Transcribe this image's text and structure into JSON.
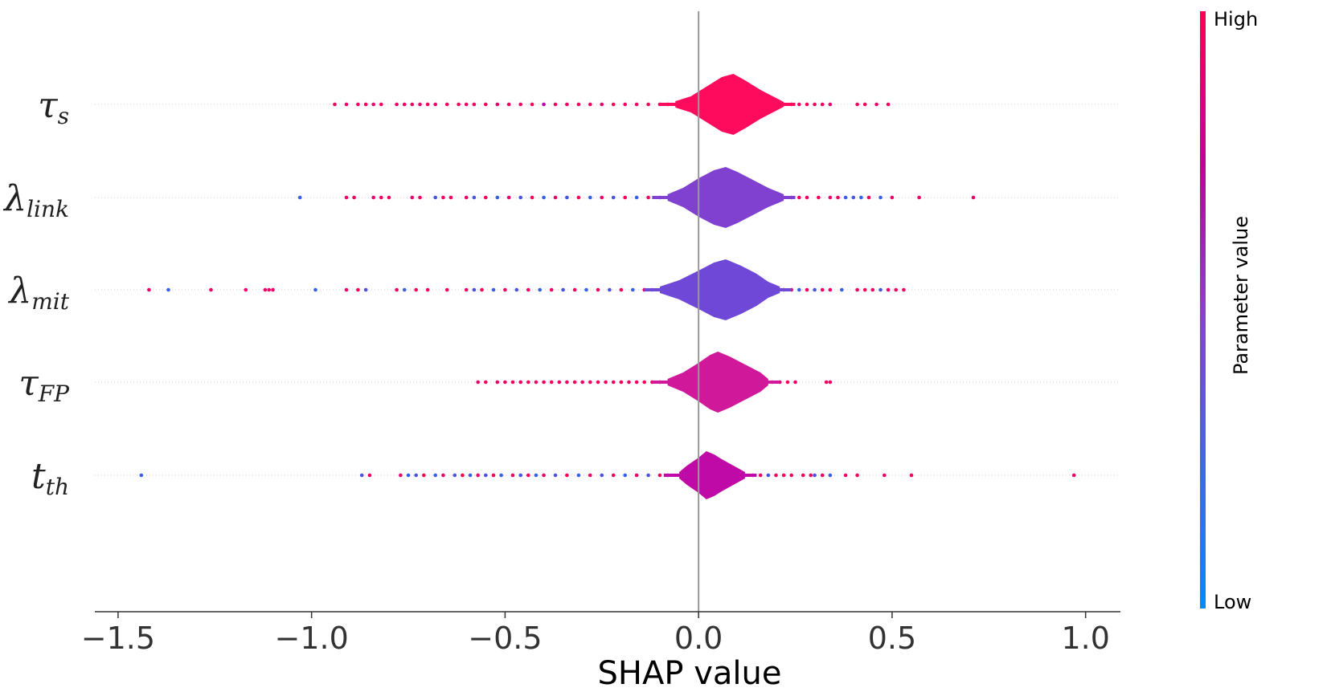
{
  "chart_data": {
    "type": "violin-beeswarm",
    "xlabel": "SHAP value",
    "xlim": [
      -1.56,
      1.09
    ],
    "xticks": [
      -1.5,
      -1.0,
      -0.5,
      0.0,
      0.5,
      1.0
    ],
    "xtick_labels": [
      "−1.5",
      "−1.0",
      "−0.5",
      "0.0",
      "0.5",
      "1.0"
    ],
    "colorbar": {
      "label": "Parameter value",
      "high": "High",
      "low": "Low",
      "color_high": "#ff0052",
      "color_mid": "#b400b4",
      "color_low": "#008bfb"
    },
    "features": [
      {
        "symbol": "τ",
        "sub": "s",
        "color": "#ff0b5e",
        "density": [
          [
            -0.06,
            4
          ],
          [
            -0.02,
            10
          ],
          [
            0.02,
            22
          ],
          [
            0.06,
            34
          ],
          [
            0.09,
            38
          ],
          [
            0.12,
            30
          ],
          [
            0.16,
            18
          ],
          [
            0.2,
            8
          ],
          [
            0.22,
            3
          ]
        ],
        "points": [
          {
            "x": -0.94,
            "v": 0.95
          },
          {
            "x": -0.91,
            "v": 0.9
          },
          {
            "x": -0.88,
            "v": 0.92
          },
          {
            "x": -0.86,
            "v": 0.95
          },
          {
            "x": -0.84,
            "v": 0.88
          },
          {
            "x": -0.82,
            "v": 0.95
          },
          {
            "x": -0.78,
            "v": 0.9
          },
          {
            "x": -0.76,
            "v": 0.95
          },
          {
            "x": -0.74,
            "v": 0.93
          },
          {
            "x": -0.72,
            "v": 0.9
          },
          {
            "x": -0.7,
            "v": 0.95
          },
          {
            "x": -0.68,
            "v": 0.88
          },
          {
            "x": -0.65,
            "v": 0.93
          },
          {
            "x": -0.62,
            "v": 0.95
          },
          {
            "x": -0.6,
            "v": 0.9
          },
          {
            "x": -0.58,
            "v": 0.92
          },
          {
            "x": -0.55,
            "v": 0.95
          },
          {
            "x": -0.52,
            "v": 0.88
          },
          {
            "x": -0.49,
            "v": 0.93
          },
          {
            "x": -0.46,
            "v": 0.9
          },
          {
            "x": -0.43,
            "v": 0.95
          },
          {
            "x": -0.4,
            "v": 0.55
          },
          {
            "x": -0.37,
            "v": 0.93
          },
          {
            "x": -0.34,
            "v": 0.9
          },
          {
            "x": -0.31,
            "v": 0.95
          },
          {
            "x": -0.28,
            "v": 0.92
          },
          {
            "x": -0.25,
            "v": 0.88
          },
          {
            "x": -0.22,
            "v": 0.95
          },
          {
            "x": -0.19,
            "v": 0.9
          },
          {
            "x": -0.16,
            "v": 0.93
          },
          {
            "x": -0.13,
            "v": 0.95
          },
          {
            "x": -0.1,
            "v": 0.9
          },
          {
            "x": -0.08,
            "v": 0.92
          },
          {
            "x": 0.24,
            "v": 0.93
          },
          {
            "x": 0.26,
            "v": 0.9
          },
          {
            "x": 0.28,
            "v": 0.95
          },
          {
            "x": 0.3,
            "v": 0.92
          },
          {
            "x": 0.32,
            "v": 0.95
          },
          {
            "x": 0.34,
            "v": 0.9
          },
          {
            "x": 0.41,
            "v": 0.93
          },
          {
            "x": 0.43,
            "v": 0.95
          },
          {
            "x": 0.46,
            "v": 0.9
          },
          {
            "x": 0.49,
            "v": 0.95
          }
        ]
      },
      {
        "symbol": "λ",
        "sub": "link",
        "color": "#8040d0",
        "density": [
          [
            -0.08,
            4
          ],
          [
            -0.04,
            12
          ],
          [
            0.0,
            24
          ],
          [
            0.04,
            34
          ],
          [
            0.07,
            38
          ],
          [
            0.1,
            32
          ],
          [
            0.14,
            22
          ],
          [
            0.18,
            12
          ],
          [
            0.22,
            4
          ]
        ],
        "points": [
          {
            "x": -1.03,
            "v": 0.15
          },
          {
            "x": -0.91,
            "v": 0.9
          },
          {
            "x": -0.89,
            "v": 0.95
          },
          {
            "x": -0.84,
            "v": 0.9
          },
          {
            "x": -0.82,
            "v": 0.95
          },
          {
            "x": -0.8,
            "v": 0.92
          },
          {
            "x": -0.74,
            "v": 0.9
          },
          {
            "x": -0.72,
            "v": 0.95
          },
          {
            "x": -0.68,
            "v": 0.2
          },
          {
            "x": -0.66,
            "v": 0.9
          },
          {
            "x": -0.64,
            "v": 0.95
          },
          {
            "x": -0.6,
            "v": 0.9
          },
          {
            "x": -0.58,
            "v": 0.2
          },
          {
            "x": -0.55,
            "v": 0.95
          },
          {
            "x": -0.52,
            "v": 0.15
          },
          {
            "x": -0.49,
            "v": 0.9
          },
          {
            "x": -0.46,
            "v": 0.2
          },
          {
            "x": -0.43,
            "v": 0.95
          },
          {
            "x": -0.4,
            "v": 0.15
          },
          {
            "x": -0.37,
            "v": 0.9
          },
          {
            "x": -0.34,
            "v": 0.2
          },
          {
            "x": -0.31,
            "v": 0.95
          },
          {
            "x": -0.28,
            "v": 0.15
          },
          {
            "x": -0.25,
            "v": 0.9
          },
          {
            "x": -0.22,
            "v": 0.2
          },
          {
            "x": -0.19,
            "v": 0.95
          },
          {
            "x": -0.16,
            "v": 0.15
          },
          {
            "x": -0.13,
            "v": 0.9
          },
          {
            "x": -0.1,
            "v": 0.2
          },
          {
            "x": 0.24,
            "v": 0.9
          },
          {
            "x": 0.26,
            "v": 0.95
          },
          {
            "x": 0.28,
            "v": 0.9
          },
          {
            "x": 0.31,
            "v": 0.95
          },
          {
            "x": 0.34,
            "v": 0.9
          },
          {
            "x": 0.36,
            "v": 0.95
          },
          {
            "x": 0.38,
            "v": 0.15
          },
          {
            "x": 0.4,
            "v": 0.2
          },
          {
            "x": 0.42,
            "v": 0.15
          },
          {
            "x": 0.44,
            "v": 0.95
          },
          {
            "x": 0.47,
            "v": 0.15
          },
          {
            "x": 0.5,
            "v": 0.9
          },
          {
            "x": 0.57,
            "v": 0.9
          },
          {
            "x": 0.71,
            "v": 0.9
          }
        ]
      },
      {
        "symbol": "λ",
        "sub": "mit",
        "color": "#7048d8",
        "density": [
          [
            -0.1,
            4
          ],
          [
            -0.05,
            12
          ],
          [
            0.0,
            24
          ],
          [
            0.04,
            34
          ],
          [
            0.07,
            38
          ],
          [
            0.11,
            30
          ],
          [
            0.15,
            20
          ],
          [
            0.18,
            10
          ],
          [
            0.21,
            4
          ]
        ],
        "points": [
          {
            "x": -1.42,
            "v": 0.9
          },
          {
            "x": -1.37,
            "v": 0.15
          },
          {
            "x": -1.26,
            "v": 0.9
          },
          {
            "x": -1.17,
            "v": 0.9
          },
          {
            "x": -1.12,
            "v": 0.9
          },
          {
            "x": -1.11,
            "v": 0.95
          },
          {
            "x": -1.1,
            "v": 0.88
          },
          {
            "x": -0.99,
            "v": 0.15
          },
          {
            "x": -0.91,
            "v": 0.9
          },
          {
            "x": -0.88,
            "v": 0.95
          },
          {
            "x": -0.86,
            "v": 0.2
          },
          {
            "x": -0.78,
            "v": 0.9
          },
          {
            "x": -0.76,
            "v": 0.15
          },
          {
            "x": -0.73,
            "v": 0.95
          },
          {
            "x": -0.7,
            "v": 0.9
          },
          {
            "x": -0.65,
            "v": 0.95
          },
          {
            "x": -0.6,
            "v": 0.9
          },
          {
            "x": -0.58,
            "v": 0.2
          },
          {
            "x": -0.56,
            "v": 0.95
          },
          {
            "x": -0.53,
            "v": 0.15
          },
          {
            "x": -0.5,
            "v": 0.9
          },
          {
            "x": -0.47,
            "v": 0.2
          },
          {
            "x": -0.44,
            "v": 0.95
          },
          {
            "x": -0.41,
            "v": 0.15
          },
          {
            "x": -0.38,
            "v": 0.9
          },
          {
            "x": -0.35,
            "v": 0.2
          },
          {
            "x": -0.32,
            "v": 0.95
          },
          {
            "x": -0.29,
            "v": 0.15
          },
          {
            "x": -0.26,
            "v": 0.9
          },
          {
            "x": -0.23,
            "v": 0.2
          },
          {
            "x": -0.2,
            "v": 0.95
          },
          {
            "x": -0.17,
            "v": 0.15
          },
          {
            "x": -0.14,
            "v": 0.9
          },
          {
            "x": -0.12,
            "v": 0.2
          },
          {
            "x": 0.22,
            "v": 0.9
          },
          {
            "x": 0.24,
            "v": 0.95
          },
          {
            "x": 0.26,
            "v": 0.15
          },
          {
            "x": 0.28,
            "v": 0.9
          },
          {
            "x": 0.3,
            "v": 0.2
          },
          {
            "x": 0.32,
            "v": 0.95
          },
          {
            "x": 0.34,
            "v": 0.9
          },
          {
            "x": 0.37,
            "v": 0.15
          },
          {
            "x": 0.41,
            "v": 0.9
          },
          {
            "x": 0.43,
            "v": 0.95
          },
          {
            "x": 0.45,
            "v": 0.9
          },
          {
            "x": 0.47,
            "v": 0.2
          },
          {
            "x": 0.49,
            "v": 0.9
          },
          {
            "x": 0.51,
            "v": 0.95
          },
          {
            "x": 0.53,
            "v": 0.9
          }
        ]
      },
      {
        "symbol": "τ",
        "sub": "FP",
        "color": "#d0189a",
        "density": [
          [
            -0.08,
            4
          ],
          [
            -0.04,
            12
          ],
          [
            0.0,
            24
          ],
          [
            0.03,
            34
          ],
          [
            0.05,
            38
          ],
          [
            0.08,
            32
          ],
          [
            0.12,
            22
          ],
          [
            0.16,
            12
          ],
          [
            0.18,
            4
          ]
        ],
        "points": [
          {
            "x": -0.57,
            "v": 0.9
          },
          {
            "x": -0.55,
            "v": 0.95
          },
          {
            "x": -0.52,
            "v": 0.9
          },
          {
            "x": -0.5,
            "v": 0.92
          },
          {
            "x": -0.48,
            "v": 0.95
          },
          {
            "x": -0.46,
            "v": 0.88
          },
          {
            "x": -0.44,
            "v": 0.95
          },
          {
            "x": -0.42,
            "v": 0.9
          },
          {
            "x": -0.4,
            "v": 0.93
          },
          {
            "x": -0.38,
            "v": 0.95
          },
          {
            "x": -0.36,
            "v": 0.9
          },
          {
            "x": -0.34,
            "v": 0.92
          },
          {
            "x": -0.32,
            "v": 0.95
          },
          {
            "x": -0.3,
            "v": 0.88
          },
          {
            "x": -0.28,
            "v": 0.93
          },
          {
            "x": -0.26,
            "v": 0.95
          },
          {
            "x": -0.24,
            "v": 0.9
          },
          {
            "x": -0.22,
            "v": 0.92
          },
          {
            "x": -0.2,
            "v": 0.95
          },
          {
            "x": -0.18,
            "v": 0.9
          },
          {
            "x": -0.16,
            "v": 0.93
          },
          {
            "x": -0.14,
            "v": 0.95
          },
          {
            "x": -0.12,
            "v": 0.9
          },
          {
            "x": -0.1,
            "v": 0.92
          },
          {
            "x": 0.19,
            "v": 0.95
          },
          {
            "x": 0.21,
            "v": 0.9
          },
          {
            "x": 0.23,
            "v": 0.95
          },
          {
            "x": 0.25,
            "v": 0.9
          },
          {
            "x": 0.33,
            "v": 0.95
          },
          {
            "x": 0.34,
            "v": 0.9
          }
        ]
      },
      {
        "symbol": "t",
        "sub": "th",
        "color": "#c00aa8",
        "density": [
          [
            -0.05,
            4
          ],
          [
            -0.03,
            12
          ],
          [
            0.0,
            22
          ],
          [
            0.02,
            30
          ],
          [
            0.04,
            26
          ],
          [
            0.06,
            20
          ],
          [
            0.09,
            12
          ],
          [
            0.12,
            4
          ]
        ],
        "points": [
          {
            "x": -1.44,
            "v": 0.15
          },
          {
            "x": -0.87,
            "v": 0.2
          },
          {
            "x": -0.85,
            "v": 0.9
          },
          {
            "x": -0.77,
            "v": 0.9
          },
          {
            "x": -0.75,
            "v": 0.15
          },
          {
            "x": -0.73,
            "v": 0.2
          },
          {
            "x": -0.71,
            "v": 0.95
          },
          {
            "x": -0.68,
            "v": 0.15
          },
          {
            "x": -0.66,
            "v": 0.9
          },
          {
            "x": -0.63,
            "v": 0.2
          },
          {
            "x": -0.61,
            "v": 0.95
          },
          {
            "x": -0.59,
            "v": 0.15
          },
          {
            "x": -0.57,
            "v": 0.9
          },
          {
            "x": -0.55,
            "v": 0.2
          },
          {
            "x": -0.53,
            "v": 0.95
          },
          {
            "x": -0.51,
            "v": 0.15
          },
          {
            "x": -0.48,
            "v": 0.9
          },
          {
            "x": -0.46,
            "v": 0.2
          },
          {
            "x": -0.44,
            "v": 0.95
          },
          {
            "x": -0.42,
            "v": 0.15
          },
          {
            "x": -0.4,
            "v": 0.9
          },
          {
            "x": -0.37,
            "v": 0.2
          },
          {
            "x": -0.34,
            "v": 0.95
          },
          {
            "x": -0.31,
            "v": 0.15
          },
          {
            "x": -0.28,
            "v": 0.9
          },
          {
            "x": -0.25,
            "v": 0.2
          },
          {
            "x": -0.22,
            "v": 0.95
          },
          {
            "x": -0.19,
            "v": 0.15
          },
          {
            "x": -0.16,
            "v": 0.9
          },
          {
            "x": -0.13,
            "v": 0.2
          },
          {
            "x": -0.1,
            "v": 0.95
          },
          {
            "x": -0.08,
            "v": 0.15
          },
          {
            "x": 0.14,
            "v": 0.9
          },
          {
            "x": 0.16,
            "v": 0.95
          },
          {
            "x": 0.18,
            "v": 0.2
          },
          {
            "x": 0.2,
            "v": 0.9
          },
          {
            "x": 0.22,
            "v": 0.95
          },
          {
            "x": 0.24,
            "v": 0.9
          },
          {
            "x": 0.27,
            "v": 0.95
          },
          {
            "x": 0.29,
            "v": 0.9
          },
          {
            "x": 0.3,
            "v": 0.2
          },
          {
            "x": 0.32,
            "v": 0.9
          },
          {
            "x": 0.34,
            "v": 0.15
          },
          {
            "x": 0.38,
            "v": 0.9
          },
          {
            "x": 0.41,
            "v": 0.95
          },
          {
            "x": 0.48,
            "v": 0.9
          },
          {
            "x": 0.55,
            "v": 0.95
          },
          {
            "x": 0.97,
            "v": 0.9
          }
        ]
      }
    ]
  }
}
